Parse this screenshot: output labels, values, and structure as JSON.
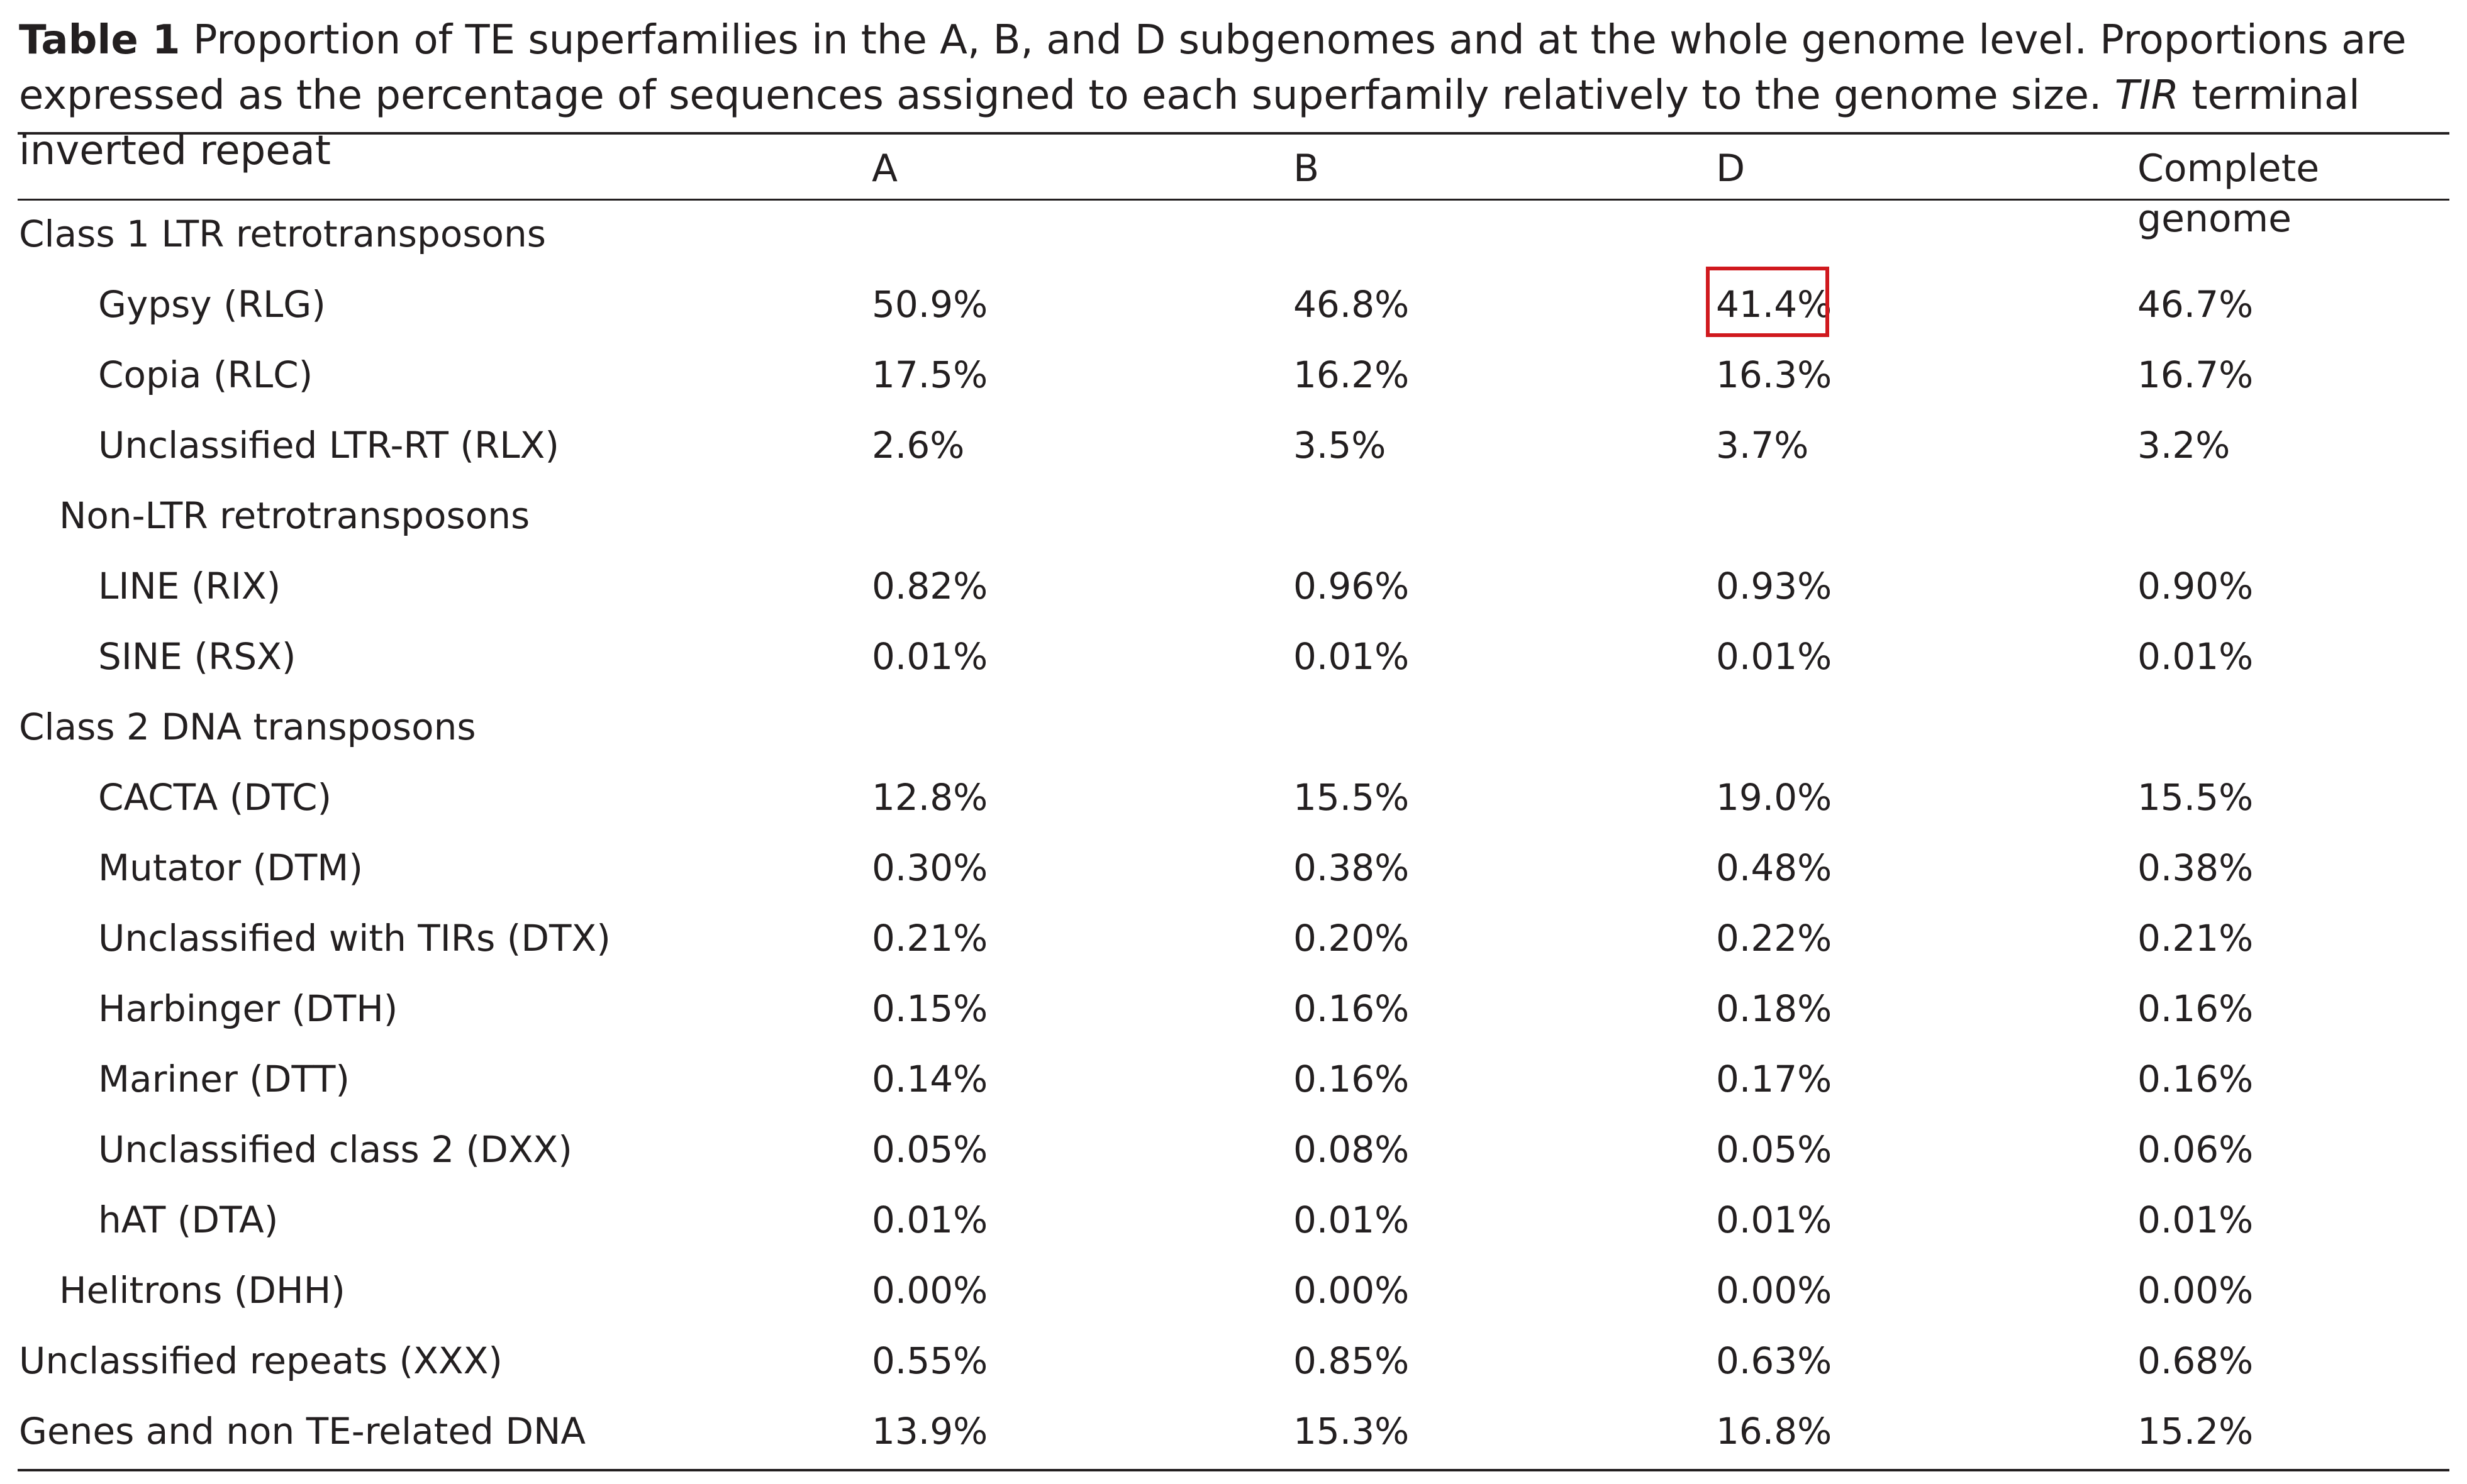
{
  "caption": {
    "label": "Table 1",
    "text_1": " Proportion of TE superfamilies in the A, B, and D subgenomes and at the whole genome level. Proportions are expressed as the percentage of sequences assigned to each superfamily relatively to the genome size. ",
    "italic": "TIR",
    "text_2": " terminal inverted repeat"
  },
  "columns": [
    "",
    "A",
    "B",
    "D",
    "Complete genome"
  ],
  "rows": [
    {
      "label": "Class 1 LTR retrotransposons",
      "a": "",
      "b": "",
      "d": "",
      "genome": ""
    },
    {
      "label": "Gypsy (RLG)",
      "a": "50.9%",
      "b": "46.8%",
      "d": "41.4%",
      "genome": "46.7%"
    },
    {
      "label": "Copia (RLC)",
      "a": "17.5%",
      "b": "16.2%",
      "d": "16.3%",
      "genome": "16.7%"
    },
    {
      "label": "Unclassified LTR-RT (RLX)",
      "a": "2.6%",
      "b": "3.5%",
      "d": "3.7%",
      "genome": "3.2%"
    },
    {
      "label": "Non-LTR retrotransposons",
      "a": "",
      "b": "",
      "d": "",
      "genome": ""
    },
    {
      "label": "LINE (RIX)",
      "a": "0.82%",
      "b": "0.96%",
      "d": "0.93%",
      "genome": "0.90%"
    },
    {
      "label": "SINE (RSX)",
      "a": "0.01%",
      "b": "0.01%",
      "d": "0.01%",
      "genome": "0.01%"
    },
    {
      "label": "Class 2 DNA transposons",
      "a": "",
      "b": "",
      "d": "",
      "genome": ""
    },
    {
      "label": "CACTA (DTC)",
      "a": "12.8%",
      "b": "15.5%",
      "d": "19.0%",
      "genome": "15.5%"
    },
    {
      "label": "Mutator (DTM)",
      "a": "0.30%",
      "b": "0.38%",
      "d": "0.48%",
      "genome": "0.38%"
    },
    {
      "label": "Unclassified with TIRs (DTX)",
      "a": "0.21%",
      "b": "0.20%",
      "d": "0.22%",
      "genome": "0.21%"
    },
    {
      "label": "Harbinger (DTH)",
      "a": "0.15%",
      "b": "0.16%",
      "d": "0.18%",
      "genome": "0.16%"
    },
    {
      "label": "Mariner (DTT)",
      "a": "0.14%",
      "b": "0.16%",
      "d": "0.17%",
      "genome": "0.16%"
    },
    {
      "label": "Unclassified class 2 (DXX)",
      "a": "0.05%",
      "b": "0.08%",
      "d": "0.05%",
      "genome": "0.06%"
    },
    {
      "label": "hAT (DTA)",
      "a": "0.01%",
      "b": "0.01%",
      "d": "0.01%",
      "genome": "0.01%"
    },
    {
      "label": "Helitrons (DHH)",
      "a": "0.00%",
      "b": "0.00%",
      "d": "0.00%",
      "genome": "0.00%"
    },
    {
      "label": "Unclassified repeats (XXX)",
      "a": "0.55%",
      "b": "0.85%",
      "d": "0.63%",
      "genome": "0.68%"
    },
    {
      "label": "Genes and non TE-related DNA",
      "a": "13.9%",
      "b": "15.3%",
      "d": "16.8%",
      "genome": "15.2%"
    }
  ],
  "highlight": {
    "row": 1,
    "column": "D",
    "color": "#d0191e"
  }
}
